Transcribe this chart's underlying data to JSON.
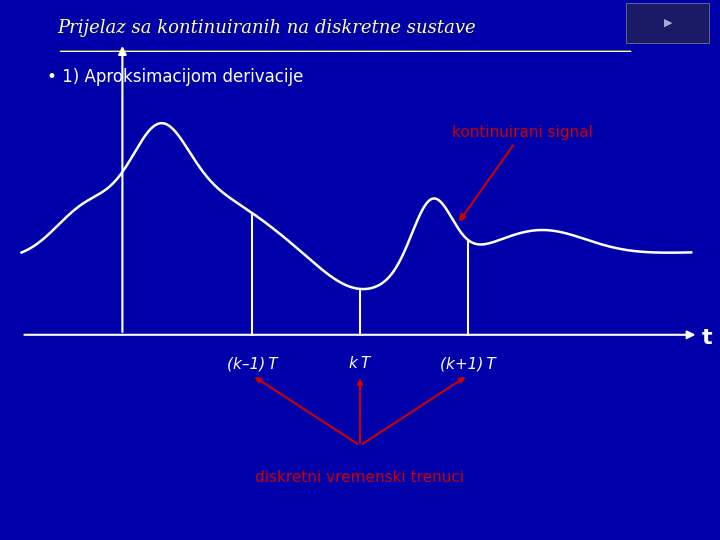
{
  "bg_color": "#0000AA",
  "title": "Prijelaz sa kontinuiranih na diskretne sustave",
  "subtitle": "1) Aproksimacijom derivacije",
  "title_color": "#FFFF99",
  "subtitle_color": "#FFFFFF",
  "signal_color": "#FFFFFF",
  "axis_color": "#FFFFFF",
  "annotation_color": "#CC0000",
  "t_label": "t",
  "x_tick_labels": [
    "(k–1) T",
    "k T",
    "(k+1) T"
  ],
  "x_tick_positions": [
    0.35,
    0.5,
    0.65
  ],
  "kontinuirani_signal_label": "kontinuirani signal",
  "diskretni_label": "diskretni vremenski trenuci"
}
